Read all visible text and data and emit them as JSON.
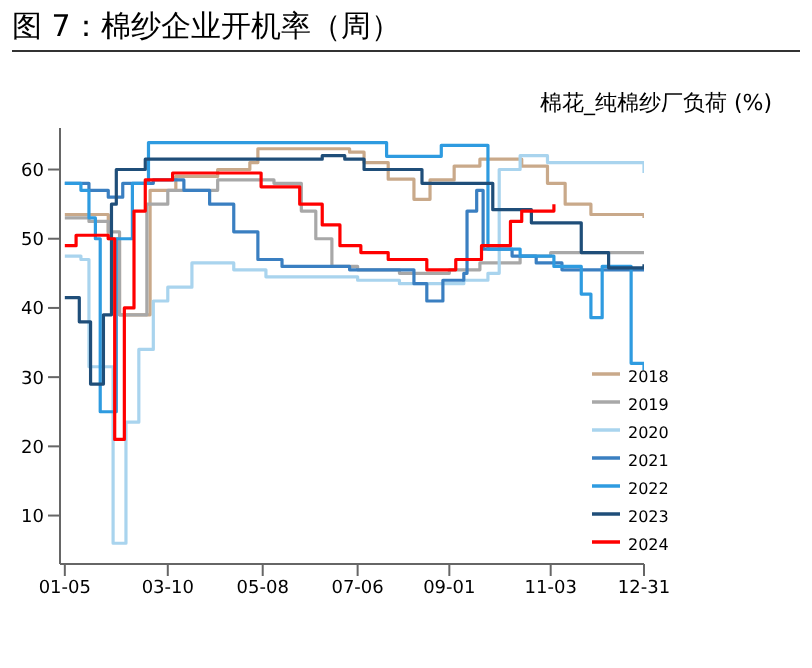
{
  "chart_data": {
    "type": "step",
    "title": "图 7：棉纱企业开机率（周）",
    "subtitle": "棉花_纯棉纱厂负荷 (%)",
    "xlim": [
      "--01-02",
      "--12-31"
    ],
    "xticks": [
      {
        "value": "--01-05",
        "label": "01-05"
      },
      {
        "value": "--03-10",
        "label": "03-10"
      },
      {
        "value": "--05-08",
        "label": "05-08"
      },
      {
        "value": "--07-06",
        "label": "07-06"
      },
      {
        "value": "--09-01",
        "label": "09-01"
      },
      {
        "value": "--11-03",
        "label": "11-03"
      },
      {
        "value": "--12-31",
        "label": "12-31"
      }
    ],
    "ylim": [
      3,
      66
    ],
    "yticks": [
      10,
      20,
      30,
      40,
      50,
      60
    ],
    "legend": "bottom right",
    "marker": "none",
    "line_style": "solid",
    "series": [
      {
        "name": "2018",
        "color": "#c9a98a",
        "x": [
          "--01-05",
          "--01-25",
          "--02-01",
          "--02-08",
          "--02-25",
          "--02-27",
          "--03-15",
          "--04-10",
          "--04-30",
          "--05-05",
          "--06-20",
          "--07-01",
          "--07-10",
          "--07-25",
          "--08-08",
          "--08-10",
          "--08-17",
          "--08-20",
          "--09-04",
          "--09-20",
          "--10-05",
          "--10-16",
          "--11-01",
          "--11-12",
          "--11-28",
          "--12-31"
        ],
        "values": [
          53.5,
          53.5,
          50,
          39,
          39,
          57,
          59,
          60,
          61,
          63,
          63,
          62.5,
          61,
          58.6,
          58.6,
          55.7,
          55.7,
          58.5,
          60.5,
          61.5,
          61.5,
          60.5,
          58,
          55,
          53.5,
          53
        ]
      },
      {
        "name": "2019",
        "color": "#a8a8a8",
        "x": [
          "--01-05",
          "--01-20",
          "--02-01",
          "--02-05",
          "--02-08",
          "--02-20",
          "--02-25",
          "--03-10",
          "--04-10",
          "--05-15",
          "--06-01",
          "--06-10",
          "--06-20",
          "--07-06",
          "--08-01",
          "--09-01",
          "--09-20",
          "--10-15",
          "--11-03",
          "--12-31"
        ],
        "values": [
          53,
          52.5,
          51,
          51,
          39,
          39,
          55,
          57,
          58.5,
          58,
          54,
          50,
          46,
          45.5,
          45,
          45.5,
          46.5,
          47.5,
          48,
          48
        ]
      },
      {
        "name": "2020",
        "color": "#a9d4ee",
        "x": [
          "--01-05",
          "--01-15",
          "--01-20",
          "--02-01",
          "--02-04",
          "--02-08",
          "--02-12",
          "--02-20",
          "--03-01",
          "--03-10",
          "--03-25",
          "--04-20",
          "--05-10",
          "--07-06",
          "--08-01",
          "--09-10",
          "--09-25",
          "--10-02",
          "--10-15",
          "--11-01",
          "--12-31"
        ],
        "values": [
          47.5,
          47,
          31.5,
          31.5,
          6,
          6,
          23.5,
          34,
          41,
          43,
          46.5,
          45.5,
          44.5,
          44,
          43.5,
          44,
          45,
          60,
          62,
          61,
          59.5
        ]
      },
      {
        "name": "2021",
        "color": "#3a7fc1",
        "x": [
          "--01-05",
          "--01-20",
          "--02-01",
          "--02-10",
          "--03-01",
          "--03-20",
          "--04-05",
          "--04-20",
          "--05-05",
          "--05-20",
          "--07-01",
          "--08-10",
          "--08-18",
          "--08-25",
          "--08-28",
          "--09-10",
          "--09-12",
          "--09-18",
          "--09-22",
          "--10-10",
          "--10-25",
          "--11-10",
          "--12-31"
        ],
        "values": [
          58,
          57,
          56,
          58,
          58.5,
          57,
          55,
          51,
          47,
          46,
          45.5,
          43.5,
          41,
          41,
          44,
          45,
          54,
          57,
          48.5,
          47.5,
          46.5,
          45.5,
          46
        ]
      },
      {
        "name": "2022",
        "color": "#2e9be0",
        "x": [
          "--01-05",
          "--01-15",
          "--01-20",
          "--01-24",
          "--01-27",
          "--02-06",
          "--02-16",
          "--02-26",
          "--07-24",
          "--08-27",
          "--09-25",
          "--10-15",
          "--11-05",
          "--11-22",
          "--11-28",
          "--12-05",
          "--12-20",
          "--12-23",
          "--12-31"
        ],
        "values": [
          58,
          57,
          53,
          50,
          25,
          50,
          58,
          63.9,
          61.9,
          63.5,
          48.5,
          47.5,
          46,
          42,
          38.6,
          46,
          46,
          32,
          31
        ]
      },
      {
        "name": "2023",
        "color": "#1f4e79",
        "x": [
          "--01-05",
          "--01-14",
          "--01-21",
          "--01-29",
          "--02-03",
          "--02-06",
          "--02-24",
          "--06-14",
          "--06-28",
          "--07-10",
          "--08-15",
          "--09-28",
          "--10-22",
          "--11-22",
          "--12-09",
          "--12-31"
        ],
        "values": [
          41.5,
          38,
          29,
          39,
          55,
          60,
          61.5,
          62,
          61.5,
          60,
          58,
          54.2,
          52.3,
          48,
          45.8,
          46.3
        ]
      },
      {
        "name": "2024",
        "color": "#ff0000",
        "x": [
          "--01-05",
          "--01-12",
          "--02-01",
          "--02-05",
          "--02-11",
          "--02-17",
          "--02-24",
          "--03-13",
          "--05-07",
          "--05-31",
          "--06-14",
          "--06-25",
          "--07-08",
          "--07-25",
          "--08-18",
          "--09-05",
          "--09-21",
          "--10-09",
          "--10-16",
          "--11-05"
        ],
        "values": [
          49,
          50.5,
          50,
          21,
          40,
          54,
          58.5,
          59.5,
          57.5,
          55,
          52,
          49,
          48,
          47,
          45.5,
          47,
          49,
          52.5,
          54,
          55
        ]
      }
    ]
  }
}
